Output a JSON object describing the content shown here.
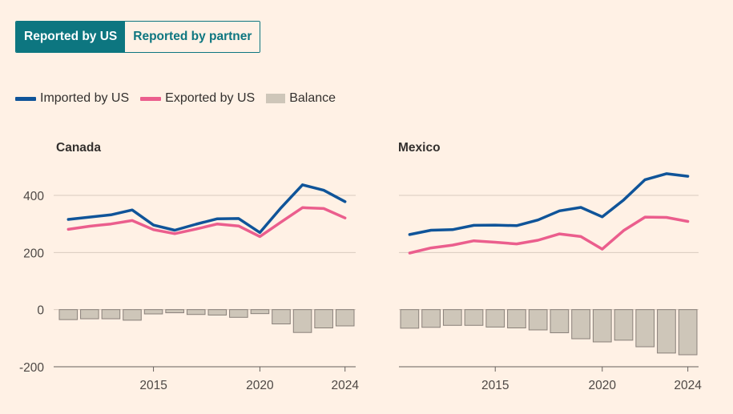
{
  "toggle": {
    "active_label": "Reported by US",
    "inactive_label": "Reported by partner"
  },
  "legend": [
    {
      "label": "Imported by US",
      "color": "#0f5499",
      "kind": "line"
    },
    {
      "label": "Exported by US",
      "color": "#eb5e8d",
      "kind": "line"
    },
    {
      "label": "Balance",
      "color": "#cec6b9",
      "kind": "bar"
    }
  ],
  "chart_data": [
    {
      "type": "line+bar",
      "title": "Canada",
      "x": [
        2011,
        2012,
        2013,
        2014,
        2015,
        2016,
        2017,
        2018,
        2019,
        2020,
        2021,
        2022,
        2023,
        2024
      ],
      "ylim": [
        -200,
        500
      ],
      "yticks": [
        400,
        200,
        0,
        -200
      ],
      "xticks": [
        "2015",
        "2020",
        "2024"
      ],
      "xtick_years": [
        2015,
        2020,
        2024
      ],
      "series": [
        {
          "name": "Imported by US",
          "values": [
            316,
            324,
            332,
            349,
            296,
            278,
            299,
            318,
            319,
            270,
            357,
            437,
            418,
            378
          ]
        },
        {
          "name": "Exported by US",
          "values": [
            281,
            292,
            300,
            312,
            280,
            266,
            282,
            300,
            293,
            256,
            307,
            357,
            354,
            321
          ]
        },
        {
          "name": "Balance",
          "values": [
            -35,
            -32,
            -32,
            -37,
            -15,
            -11,
            -17,
            -19,
            -27,
            -14,
            -50,
            -80,
            -64,
            -57
          ]
        }
      ]
    },
    {
      "type": "line+bar",
      "title": "Mexico",
      "x": [
        2011,
        2012,
        2013,
        2014,
        2015,
        2016,
        2017,
        2018,
        2019,
        2020,
        2021,
        2022,
        2023,
        2024
      ],
      "ylim": [
        -200,
        500
      ],
      "yticks": [
        400,
        200,
        0,
        -200
      ],
      "xticks": [
        "2015",
        "2020",
        "2024"
      ],
      "xtick_years": [
        2015,
        2020,
        2024
      ],
      "series": [
        {
          "name": "Imported by US",
          "values": [
            263,
            278,
            280,
            295,
            296,
            294,
            314,
            346,
            358,
            325,
            384,
            455,
            476,
            467
          ]
        },
        {
          "name": "Exported by US",
          "values": [
            198,
            216,
            226,
            241,
            236,
            230,
            243,
            265,
            256,
            212,
            277,
            324,
            323,
            309
          ]
        },
        {
          "name": "Balance",
          "values": [
            -65,
            -62,
            -55,
            -55,
            -61,
            -64,
            -71,
            -81,
            -102,
            -113,
            -107,
            -130,
            -152,
            -158
          ]
        }
      ]
    }
  ]
}
